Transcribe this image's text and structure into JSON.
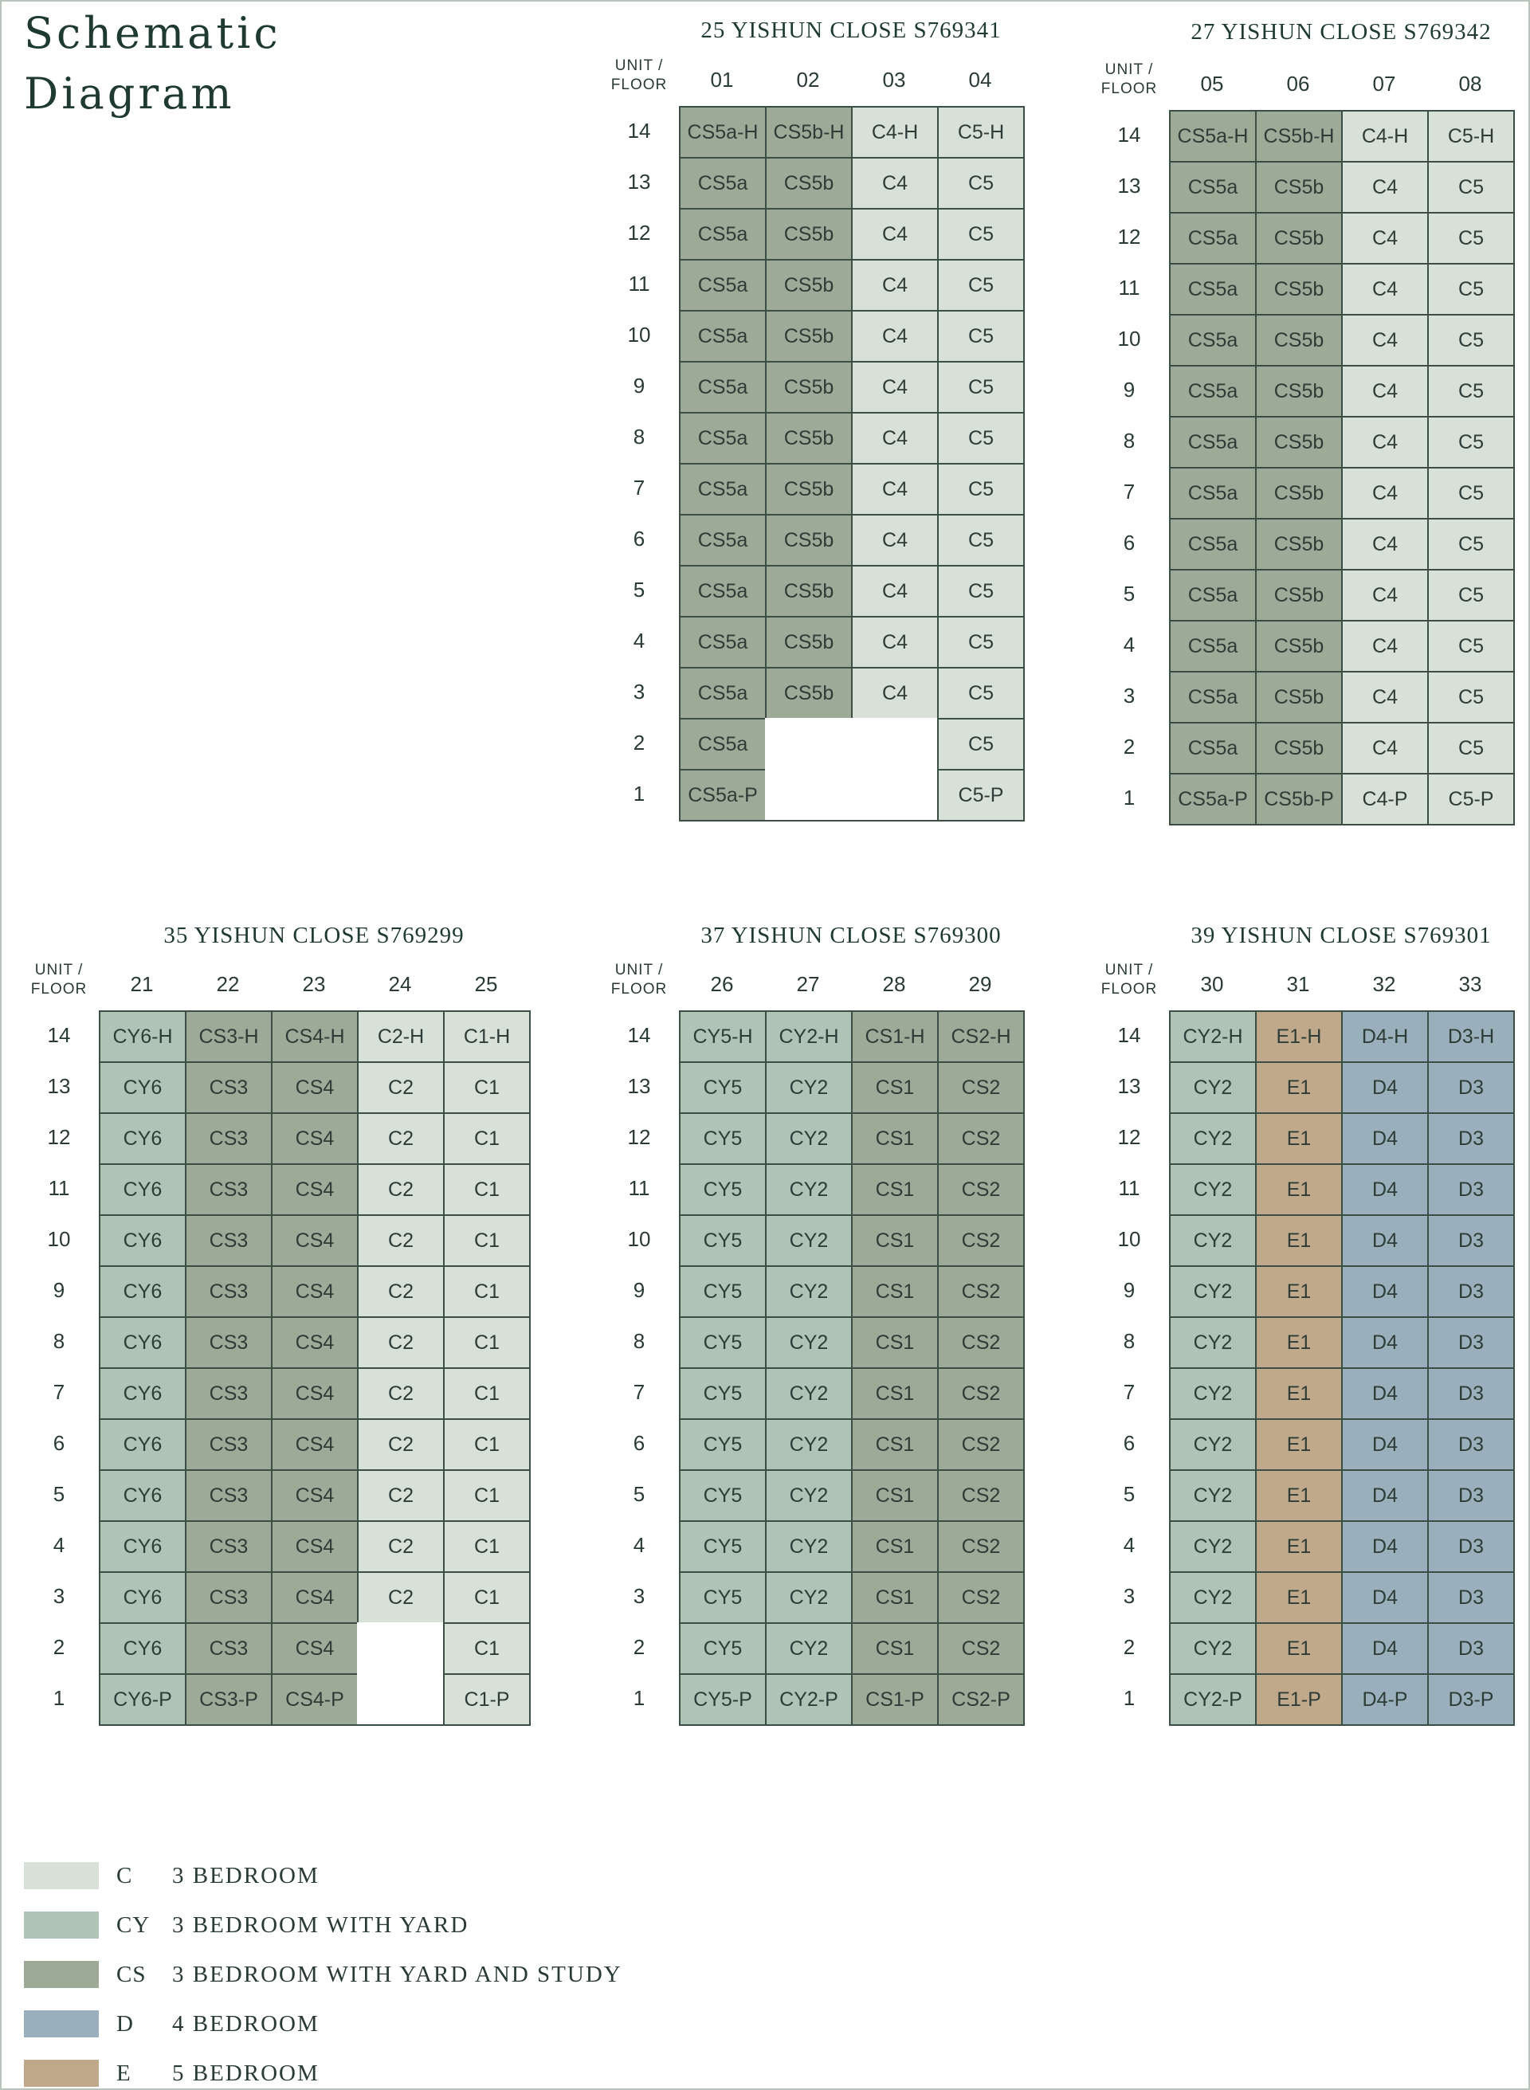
{
  "title": [
    "Schematic",
    "Diagram"
  ],
  "unit_floor_label": [
    "UNIT /",
    "FLOOR"
  ],
  "colors": {
    "C": "#d8e1d8",
    "CY": "#afc4b7",
    "CS": "#9daa98",
    "D": "#99afbb",
    "E": "#c0a98a"
  },
  "blocks": [
    {
      "name": "25 YISHUN CLOSE S769341",
      "units": [
        "01",
        "02",
        "03",
        "04"
      ],
      "floors": [
        "14",
        "13",
        "12",
        "11",
        "10",
        "9",
        "8",
        "7",
        "6",
        "5",
        "4",
        "3",
        "2",
        "1"
      ],
      "columns": [
        {
          "type": "CS",
          "cells": [
            "CS5a-H",
            "CS5a",
            "CS5a",
            "CS5a",
            "CS5a",
            "CS5a",
            "CS5a",
            "CS5a",
            "CS5a",
            "CS5a",
            "CS5a",
            "CS5a",
            "CS5a",
            "CS5a-P"
          ]
        },
        {
          "type": "CS",
          "cells": [
            "CS5b-H",
            "CS5b",
            "CS5b",
            "CS5b",
            "CS5b",
            "CS5b",
            "CS5b",
            "CS5b",
            "CS5b",
            "CS5b",
            "CS5b",
            "CS5b",
            null,
            null
          ]
        },
        {
          "type": "C",
          "cells": [
            "C4-H",
            "C4",
            "C4",
            "C4",
            "C4",
            "C4",
            "C4",
            "C4",
            "C4",
            "C4",
            "C4",
            "C4",
            null,
            null
          ]
        },
        {
          "type": "C",
          "cells": [
            "C5-H",
            "C5",
            "C5",
            "C5",
            "C5",
            "C5",
            "C5",
            "C5",
            "C5",
            "C5",
            "C5",
            "C5",
            "C5",
            "C5-P"
          ]
        }
      ]
    },
    {
      "name": "27 YISHUN CLOSE S769342",
      "units": [
        "05",
        "06",
        "07",
        "08"
      ],
      "floors": [
        "14",
        "13",
        "12",
        "11",
        "10",
        "9",
        "8",
        "7",
        "6",
        "5",
        "4",
        "3",
        "2",
        "1"
      ],
      "columns": [
        {
          "type": "CS",
          "cells": [
            "CS5a-H",
            "CS5a",
            "CS5a",
            "CS5a",
            "CS5a",
            "CS5a",
            "CS5a",
            "CS5a",
            "CS5a",
            "CS5a",
            "CS5a",
            "CS5a",
            "CS5a",
            "CS5a-P"
          ]
        },
        {
          "type": "CS",
          "cells": [
            "CS5b-H",
            "CS5b",
            "CS5b",
            "CS5b",
            "CS5b",
            "CS5b",
            "CS5b",
            "CS5b",
            "CS5b",
            "CS5b",
            "CS5b",
            "CS5b",
            "CS5b",
            "CS5b-P"
          ]
        },
        {
          "type": "C",
          "cells": [
            "C4-H",
            "C4",
            "C4",
            "C4",
            "C4",
            "C4",
            "C4",
            "C4",
            "C4",
            "C4",
            "C4",
            "C4",
            "C4",
            "C4-P"
          ]
        },
        {
          "type": "C",
          "cells": [
            "C5-H",
            "C5",
            "C5",
            "C5",
            "C5",
            "C5",
            "C5",
            "C5",
            "C5",
            "C5",
            "C5",
            "C5",
            "C5",
            "C5-P"
          ]
        }
      ]
    },
    {
      "name": "35 YISHUN CLOSE S769299",
      "units": [
        "21",
        "22",
        "23",
        "24",
        "25"
      ],
      "floors": [
        "14",
        "13",
        "12",
        "11",
        "10",
        "9",
        "8",
        "7",
        "6",
        "5",
        "4",
        "3",
        "2",
        "1"
      ],
      "columns": [
        {
          "type": "CY",
          "cells": [
            "CY6-H",
            "CY6",
            "CY6",
            "CY6",
            "CY6",
            "CY6",
            "CY6",
            "CY6",
            "CY6",
            "CY6",
            "CY6",
            "CY6",
            "CY6",
            "CY6-P"
          ]
        },
        {
          "type": "CS",
          "cells": [
            "CS3-H",
            "CS3",
            "CS3",
            "CS3",
            "CS3",
            "CS3",
            "CS3",
            "CS3",
            "CS3",
            "CS3",
            "CS3",
            "CS3",
            "CS3",
            "CS3-P"
          ]
        },
        {
          "type": "CS",
          "cells": [
            "CS4-H",
            "CS4",
            "CS4",
            "CS4",
            "CS4",
            "CS4",
            "CS4",
            "CS4",
            "CS4",
            "CS4",
            "CS4",
            "CS4",
            "CS4",
            "CS4-P"
          ]
        },
        {
          "type": "C",
          "cells": [
            "C2-H",
            "C2",
            "C2",
            "C2",
            "C2",
            "C2",
            "C2",
            "C2",
            "C2",
            "C2",
            "C2",
            "C2",
            null,
            null
          ]
        },
        {
          "type": "C",
          "cells": [
            "C1-H",
            "C1",
            "C1",
            "C1",
            "C1",
            "C1",
            "C1",
            "C1",
            "C1",
            "C1",
            "C1",
            "C1",
            "C1",
            "C1-P"
          ]
        }
      ]
    },
    {
      "name": "37 YISHUN CLOSE S769300",
      "units": [
        "26",
        "27",
        "28",
        "29"
      ],
      "floors": [
        "14",
        "13",
        "12",
        "11",
        "10",
        "9",
        "8",
        "7",
        "6",
        "5",
        "4",
        "3",
        "2",
        "1"
      ],
      "columns": [
        {
          "type": "CY",
          "cells": [
            "CY5-H",
            "CY5",
            "CY5",
            "CY5",
            "CY5",
            "CY5",
            "CY5",
            "CY5",
            "CY5",
            "CY5",
            "CY5",
            "CY5",
            "CY5",
            "CY5-P"
          ]
        },
        {
          "type": "CY",
          "cells": [
            "CY2-H",
            "CY2",
            "CY2",
            "CY2",
            "CY2",
            "CY2",
            "CY2",
            "CY2",
            "CY2",
            "CY2",
            "CY2",
            "CY2",
            "CY2",
            "CY2-P"
          ]
        },
        {
          "type": "CS",
          "cells": [
            "CS1-H",
            "CS1",
            "CS1",
            "CS1",
            "CS1",
            "CS1",
            "CS1",
            "CS1",
            "CS1",
            "CS1",
            "CS1",
            "CS1",
            "CS1",
            "CS1-P"
          ]
        },
        {
          "type": "CS",
          "cells": [
            "CS2-H",
            "CS2",
            "CS2",
            "CS2",
            "CS2",
            "CS2",
            "CS2",
            "CS2",
            "CS2",
            "CS2",
            "CS2",
            "CS2",
            "CS2",
            "CS2-P"
          ]
        }
      ]
    },
    {
      "name": "39 YISHUN CLOSE S769301",
      "units": [
        "30",
        "31",
        "32",
        "33"
      ],
      "floors": [
        "14",
        "13",
        "12",
        "11",
        "10",
        "9",
        "8",
        "7",
        "6",
        "5",
        "4",
        "3",
        "2",
        "1"
      ],
      "columns": [
        {
          "type": "CY",
          "cells": [
            "CY2-H",
            "CY2",
            "CY2",
            "CY2",
            "CY2",
            "CY2",
            "CY2",
            "CY2",
            "CY2",
            "CY2",
            "CY2",
            "CY2",
            "CY2",
            "CY2-P"
          ]
        },
        {
          "type": "E",
          "cells": [
            "E1-H",
            "E1",
            "E1",
            "E1",
            "E1",
            "E1",
            "E1",
            "E1",
            "E1",
            "E1",
            "E1",
            "E1",
            "E1",
            "E1-P"
          ]
        },
        {
          "type": "D",
          "cells": [
            "D4-H",
            "D4",
            "D4",
            "D4",
            "D4",
            "D4",
            "D4",
            "D4",
            "D4",
            "D4",
            "D4",
            "D4",
            "D4",
            "D4-P"
          ]
        },
        {
          "type": "D",
          "cells": [
            "D3-H",
            "D3",
            "D3",
            "D3",
            "D3",
            "D3",
            "D3",
            "D3",
            "D3",
            "D3",
            "D3",
            "D3",
            "D3",
            "D3-P"
          ]
        }
      ]
    }
  ],
  "legend": [
    {
      "code": "C",
      "label": "3 BEDROOM"
    },
    {
      "code": "CY",
      "label": "3 BEDROOM WITH YARD"
    },
    {
      "code": "CS",
      "label": "3 BEDROOM WITH YARD AND STUDY"
    },
    {
      "code": "D",
      "label": "4 BEDROOM"
    },
    {
      "code": "E",
      "label": "5 BEDROOM"
    }
  ]
}
